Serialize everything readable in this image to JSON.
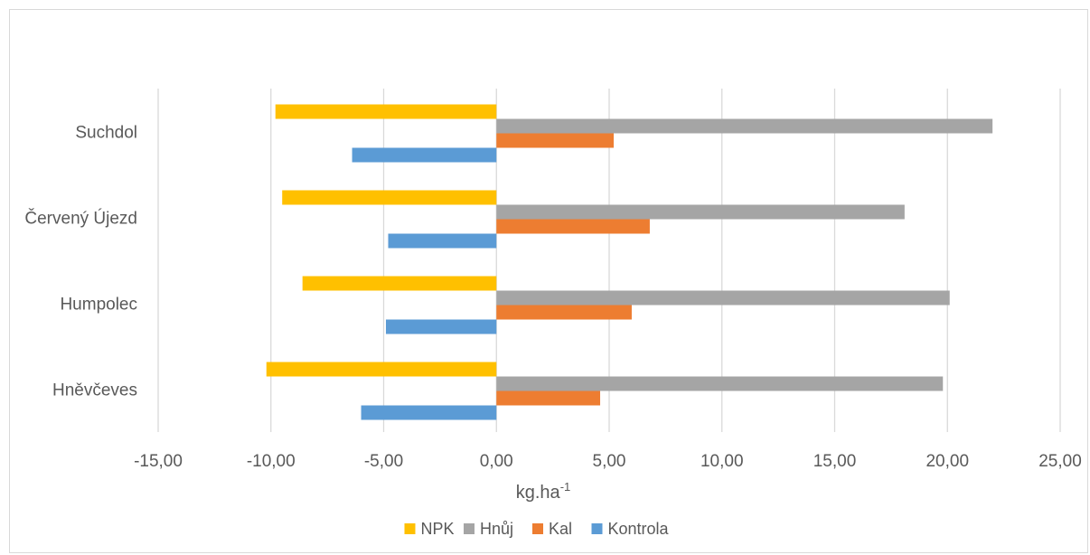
{
  "chart_data": {
    "type": "bar",
    "orientation": "horizontal",
    "categories": [
      "Suchdol",
      "Červený Újezd",
      "Humpolec",
      "Hněvčeves"
    ],
    "series": [
      {
        "name": "NPK",
        "color": "#ffc000",
        "values": [
          -9.8,
          -9.5,
          -8.6,
          -10.2
        ]
      },
      {
        "name": "Hnůj",
        "color": "#a5a5a5",
        "values": [
          22.0,
          18.1,
          20.1,
          19.8
        ]
      },
      {
        "name": "Kal",
        "color": "#ed7d31",
        "values": [
          5.2,
          6.8,
          6.0,
          4.6
        ]
      },
      {
        "name": "Kontrola",
        "color": "#5b9bd5",
        "values": [
          -6.4,
          -4.8,
          -4.9,
          -6.0
        ]
      }
    ],
    "xlim": [
      -15,
      25
    ],
    "xticks": [
      "-15,00",
      "-10,00",
      "-5,00",
      "0,00",
      "5,00",
      "10,00",
      "15,00",
      "20,00",
      "25,00"
    ],
    "xlabel_main": "kg.ha",
    "xlabel_sup": "-1",
    "legend_position": "bottom",
    "grid": true
  }
}
